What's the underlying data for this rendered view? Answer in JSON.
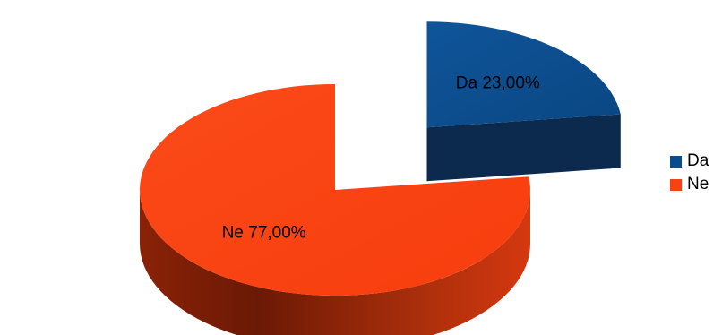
{
  "chart_data": {
    "type": "pie",
    "style": "3d-exploded",
    "categories": [
      "Da",
      "Ne"
    ],
    "values": [
      23,
      77
    ],
    "unit": "%",
    "data_labels": [
      "Da 23,00%",
      "Ne 77,00%"
    ],
    "colors": {
      "Da": "#0a4d8c",
      "Ne": "#fa4111"
    },
    "legend_placement": "right",
    "title": "",
    "xlabel": "",
    "ylabel": ""
  },
  "legend": {
    "items": [
      {
        "label": "Da",
        "color": "#0a4d8c"
      },
      {
        "label": "Ne",
        "color": "#fa4111"
      }
    ]
  }
}
